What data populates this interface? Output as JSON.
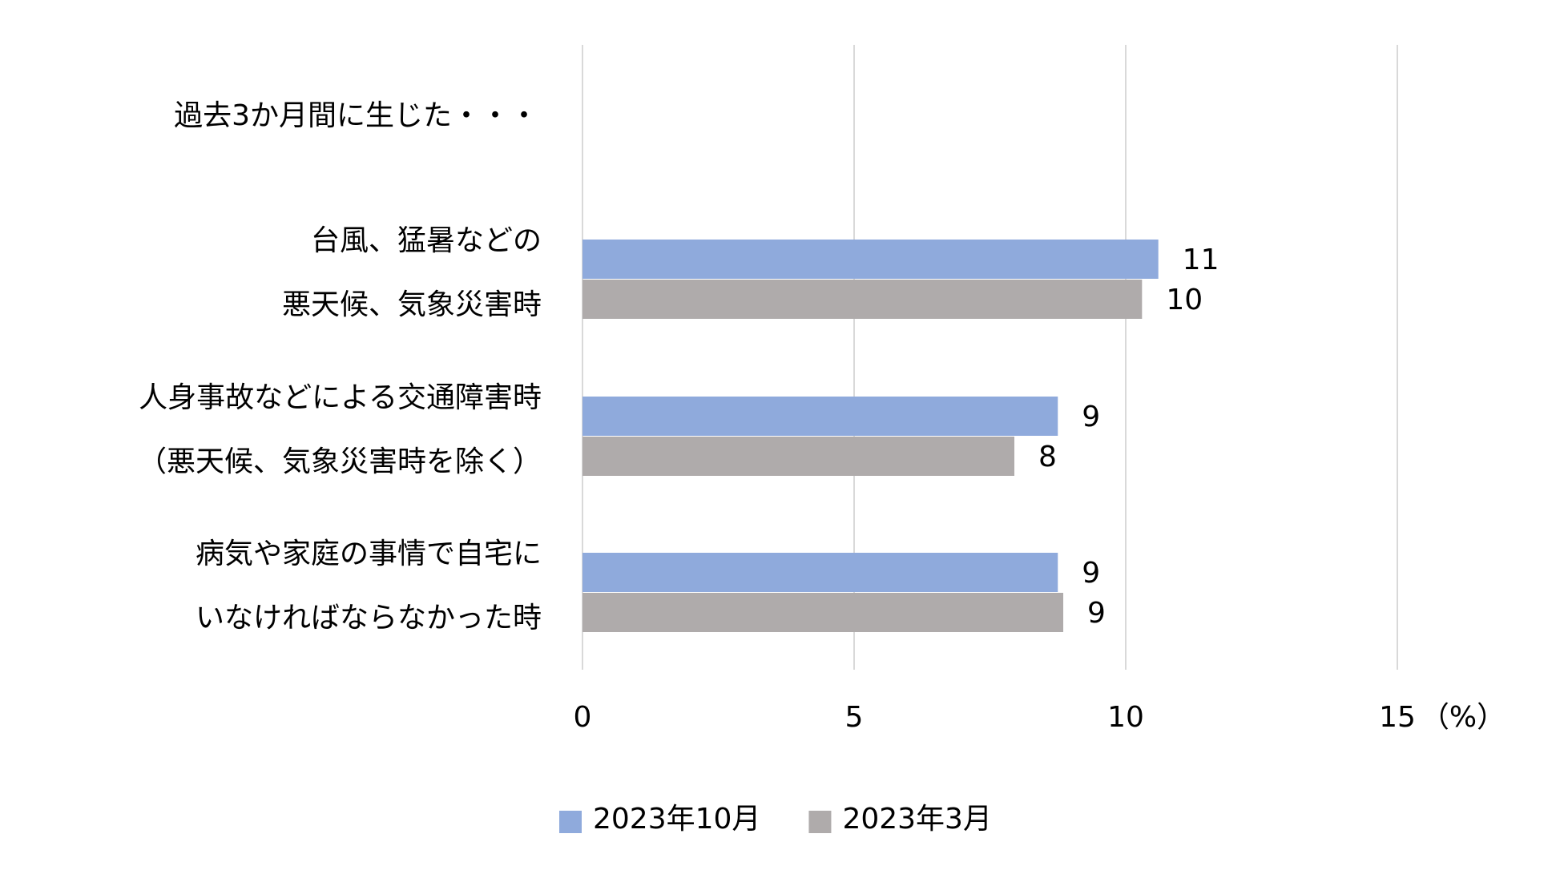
{
  "chart_data": {
    "type": "bar",
    "orientation": "horizontal",
    "annotation": "過去3か月間に生じた・・・",
    "categories": [
      [
        "台風、猛暑などの",
        "悪天候、気象災害時"
      ],
      [
        "人身事故などによる交通障害時",
        "（悪天候、気象災害時を除く）"
      ],
      [
        "病気や家庭の事情で自宅に",
        "いなければならなかった時"
      ]
    ],
    "series": [
      {
        "name": "2023年10月",
        "color": "#8faadc",
        "values": [
          10.6,
          8.75,
          8.75
        ],
        "value_labels": [
          "11",
          "9",
          "9"
        ]
      },
      {
        "name": "2023年3月",
        "color": "#afabab",
        "values": [
          10.3,
          7.95,
          8.85
        ],
        "value_labels": [
          "10",
          "8",
          "9"
        ]
      }
    ],
    "xlim": [
      0,
      15
    ],
    "xticks": [
      0,
      5,
      10,
      15
    ],
    "xlabel": "（%）",
    "grid": true,
    "legend": "bottom"
  }
}
